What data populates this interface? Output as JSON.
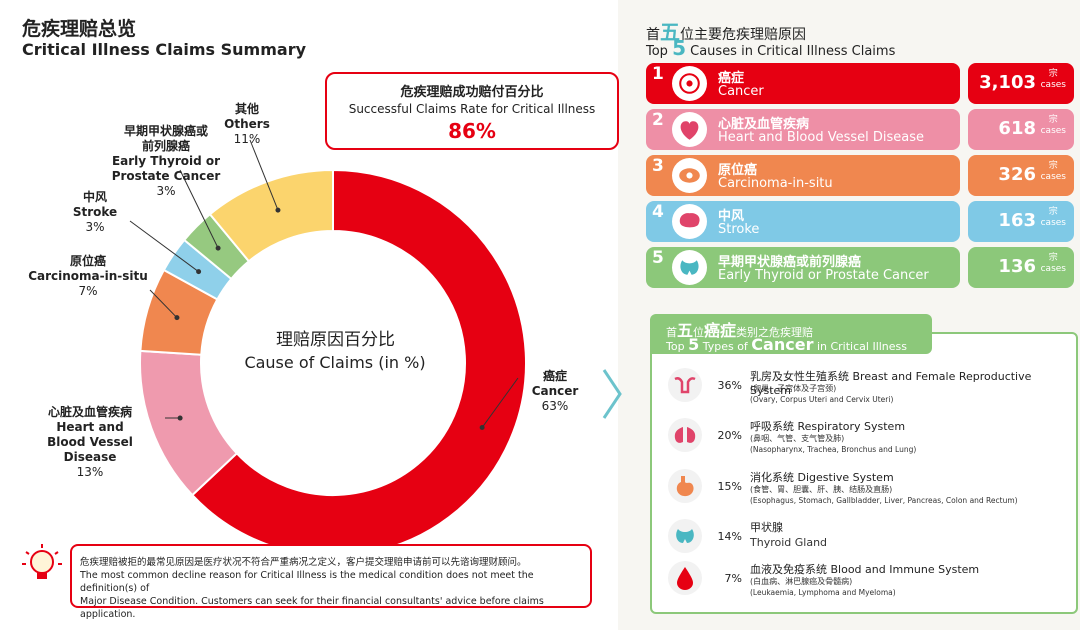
{
  "title": {
    "zh": "危疾理赔总览",
    "en": "Critical Illness Claims Summary"
  },
  "success_rate": {
    "label_zh": "危疾理赔成功赔付百分比",
    "label_en": "Successful Claims Rate for Critical Illness",
    "value": "86%"
  },
  "center": {
    "zh": "理赔原因百分比",
    "en": "Cause of Claims (in %)"
  },
  "chart_data": {
    "type": "pie",
    "variant": "donut",
    "title": "Cause of Claims (in %)",
    "slices": [
      {
        "zh": "癌症",
        "en": "Cancer",
        "value": 63,
        "label": "63%",
        "color": "#e60012"
      },
      {
        "zh": "心脏及血管疾病",
        "en": "Heart and Blood Vessel Disease",
        "value": 13,
        "label": "13%",
        "color": "#ef9aae"
      },
      {
        "zh": "原位癌",
        "en": "Carcinoma-in-situ",
        "value": 7,
        "label": "7%",
        "color": "#f0874f"
      },
      {
        "zh": "中风",
        "en": "Stroke",
        "value": 3,
        "label": "3%",
        "color": "#8fd0ea"
      },
      {
        "zh": "早期甲状腺癌或前列腺癌",
        "en": "Early Thyroid or Prostate Cancer",
        "value": 3,
        "label": "3%",
        "color": "#96c980"
      },
      {
        "zh": "其他",
        "en": "Others",
        "value": 11,
        "label": "11%",
        "color": "#fbd46d"
      }
    ]
  },
  "pie_labels": {
    "cancer": {
      "zh": "癌症",
      "en": "Cancer",
      "pct": "63%"
    },
    "heart": {
      "zh": "心脏及血管疾病",
      "en1": "Heart and",
      "en2": "Blood Vessel Disease",
      "pct": "13%"
    },
    "cis": {
      "zh": "原位癌",
      "en": "Carcinoma-in-situ",
      "pct": "7%"
    },
    "stroke": {
      "zh": "中风",
      "en": "Stroke",
      "pct": "3%"
    },
    "thyroid": {
      "zh1": "早期甲状腺癌或",
      "zh2": "前列腺癌",
      "en1": "Early Thyroid or",
      "en2": "Prostate Cancer",
      "pct": "3%"
    },
    "others": {
      "zh": "其他",
      "en": "Others",
      "pct": "11%"
    }
  },
  "note": {
    "zh": "危疾理赔被拒的最常见原因是医疗状况不符合严重病况之定义，客户提交理赔申请前可以先谘询理财顾问。",
    "en1": "The most common decline reason for Critical Illness is the medical condition does not meet the definition(s) of",
    "en2": "Major Disease Condition. Customers can seek for their financial consultants' advice before claims application."
  },
  "top5": {
    "heading_zh": {
      "pre": "首",
      "big": "五",
      "post": "位主要危疾理赔原因"
    },
    "heading_en": {
      "pre": "Top ",
      "big": "5",
      "post": " Causes in Critical Illness Claims"
    },
    "unit_zh": "宗",
    "unit_en": "cases",
    "items": [
      {
        "rank": "1",
        "zh": "癌症",
        "en": "Cancer",
        "count": "3,103",
        "color": "#e60012",
        "icon": "cancer-cell-icon"
      },
      {
        "rank": "2",
        "zh": "心脏及血管疾病",
        "en": "Heart and Blood Vessel Disease",
        "count": "618",
        "color": "#ee8fa6",
        "icon": "heart-icon"
      },
      {
        "rank": "3",
        "zh": "原位癌",
        "en": "Carcinoma-in-situ",
        "count": "326",
        "color": "#f0874f",
        "icon": "cell-icon"
      },
      {
        "rank": "4",
        "zh": "中风",
        "en": "Stroke",
        "count": "163",
        "color": "#7fc9e6",
        "icon": "brain-icon"
      },
      {
        "rank": "5",
        "zh": "早期甲状腺癌或前列腺癌",
        "en": "Early Thyroid or Prostate Cancer",
        "count": "136",
        "color": "#8cc87a",
        "icon": "thyroid-icon"
      }
    ]
  },
  "cancer_types": {
    "heading_zh": {
      "pre": "首",
      "big1": "五",
      "mid": "位",
      "big2": "癌症",
      "post": "类别之危疾理赔"
    },
    "heading_en": {
      "pre": "Top ",
      "big1": "5",
      "mid": " Types of ",
      "big2": "Cancer",
      "post": " in Critical Illness Claims"
    },
    "items": [
      {
        "pct": "36%",
        "name": "乳房及女性生殖系统 Breast and Female Reproductive System",
        "sub1": "(卵巢、子宫体及子宫颈)",
        "sub2": "(Ovary, Corpus Uteri and Cervix Uteri)",
        "icon": "uterus-icon"
      },
      {
        "pct": "20%",
        "name": "呼吸系统 Respiratory System",
        "sub1": "(鼻咽、气管、支气管及肺)",
        "sub2": "(Nasopharynx, Trachea, Bronchus and Lung)",
        "icon": "lungs-icon"
      },
      {
        "pct": "15%",
        "name": "消化系统 Digestive System",
        "sub1": "(食管、胃、胆囊、肝、胰、结肠及直肠)",
        "sub2": "(Esophagus, Stomach, Gallbladder, Liver, Pancreas, Colon and Rectum)",
        "icon": "stomach-icon"
      },
      {
        "pct": "14%",
        "name": "甲状腺",
        "sub1": "Thyroid Gland",
        "sub2": "",
        "icon": "thyroid-gland-icon"
      },
      {
        "pct": "7%",
        "name": "血液及免疫系统 Blood and Immune System",
        "sub1": "(白血病、淋巴腺癌及骨髓病)",
        "sub2": "(Leukaemia, Lymphoma and Myeloma)",
        "icon": "blood-drop-icon"
      }
    ]
  }
}
